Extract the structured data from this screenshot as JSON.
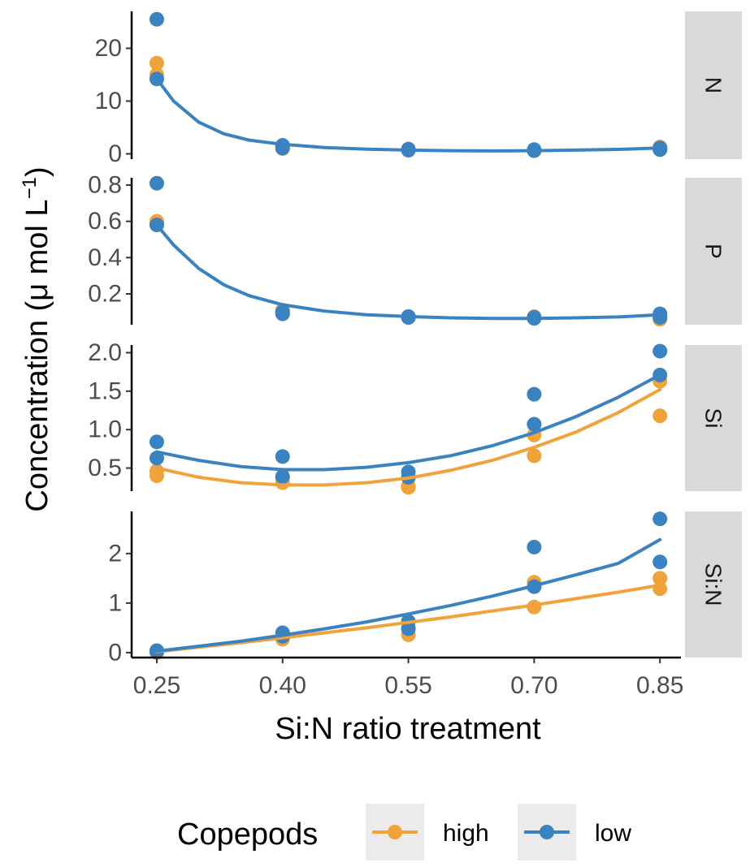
{
  "chart_data": {
    "type": "scatter",
    "ylabel": "Concentration (μ mol L",
    "ylabel_sup": "−1",
    "ylabel_close": ")",
    "xlabel": "Si:N ratio treatment",
    "x_ticks": [
      0.25,
      0.4,
      0.55,
      0.7,
      0.85
    ],
    "x_tick_labels": [
      "0.25",
      "0.40",
      "0.55",
      "0.70",
      "0.85"
    ],
    "xlim": [
      0.22,
      0.875
    ],
    "legend": {
      "title": "Copepods",
      "position": "bottom",
      "entries": [
        {
          "name": "high",
          "color": "#F0A33A"
        },
        {
          "name": "low",
          "color": "#3A82C0"
        }
      ]
    },
    "panels": [
      {
        "strip": "N",
        "ylim": [
          -1,
          27
        ],
        "y_ticks": [
          0,
          10,
          20
        ],
        "y_tick_labels": [
          "0",
          "10",
          "20"
        ],
        "series": [
          {
            "name": "high",
            "color": "#F0A33A",
            "points": [
              [
                0.25,
                17.2
              ],
              [
                0.25,
                15.0
              ],
              [
                0.4,
                1.6
              ],
              [
                0.4,
                1.0
              ],
              [
                0.55,
                0.8
              ],
              [
                0.55,
                0.7
              ],
              [
                0.7,
                0.7
              ],
              [
                0.7,
                0.6
              ],
              [
                0.85,
                1.3
              ],
              [
                0.85,
                0.9
              ]
            ],
            "fit": []
          },
          {
            "name": "low",
            "color": "#3A82C0",
            "points": [
              [
                0.25,
                25.5
              ],
              [
                0.25,
                14.2
              ],
              [
                0.4,
                1.6
              ],
              [
                0.4,
                1.1
              ],
              [
                0.55,
                0.9
              ],
              [
                0.55,
                0.7
              ],
              [
                0.7,
                0.8
              ],
              [
                0.7,
                0.6
              ],
              [
                0.85,
                1.1
              ],
              [
                0.85,
                0.8
              ]
            ],
            "fit": [
              [
                0.25,
                14.2
              ],
              [
                0.27,
                10.0
              ],
              [
                0.3,
                6.0
              ],
              [
                0.33,
                3.8
              ],
              [
                0.36,
                2.6
              ],
              [
                0.4,
                1.8
              ],
              [
                0.45,
                1.2
              ],
              [
                0.5,
                0.9
              ],
              [
                0.55,
                0.7
              ],
              [
                0.6,
                0.6
              ],
              [
                0.65,
                0.55
              ],
              [
                0.7,
                0.6
              ],
              [
                0.75,
                0.7
              ],
              [
                0.8,
                0.85
              ],
              [
                0.85,
                1.1
              ]
            ]
          }
        ]
      },
      {
        "strip": "P",
        "ylim": [
          0.03,
          0.84
        ],
        "y_ticks": [
          0.2,
          0.4,
          0.6,
          0.8
        ],
        "y_tick_labels": [
          "0.2",
          "0.4",
          "0.6",
          "0.8"
        ],
        "series": [
          {
            "name": "high",
            "color": "#F0A33A",
            "points": [
              [
                0.25,
                0.6
              ],
              [
                0.25,
                0.59
              ],
              [
                0.4,
                0.11
              ],
              [
                0.4,
                0.1
              ],
              [
                0.55,
                0.07
              ],
              [
                0.55,
                0.075
              ],
              [
                0.7,
                0.07
              ],
              [
                0.7,
                0.075
              ],
              [
                0.85,
                0.07
              ],
              [
                0.85,
                0.06
              ]
            ],
            "fit": []
          },
          {
            "name": "low",
            "color": "#3A82C0",
            "points": [
              [
                0.25,
                0.81
              ],
              [
                0.25,
                0.58
              ],
              [
                0.4,
                0.09
              ],
              [
                0.4,
                0.1
              ],
              [
                0.55,
                0.07
              ],
              [
                0.55,
                0.075
              ],
              [
                0.7,
                0.065
              ],
              [
                0.7,
                0.07
              ],
              [
                0.85,
                0.09
              ],
              [
                0.85,
                0.07
              ]
            ],
            "fit": [
              [
                0.25,
                0.58
              ],
              [
                0.27,
                0.47
              ],
              [
                0.3,
                0.34
              ],
              [
                0.33,
                0.25
              ],
              [
                0.36,
                0.19
              ],
              [
                0.4,
                0.14
              ],
              [
                0.45,
                0.105
              ],
              [
                0.5,
                0.085
              ],
              [
                0.55,
                0.075
              ],
              [
                0.6,
                0.068
              ],
              [
                0.65,
                0.065
              ],
              [
                0.7,
                0.065
              ],
              [
                0.75,
                0.068
              ],
              [
                0.8,
                0.073
              ],
              [
                0.85,
                0.085
              ]
            ]
          }
        ]
      },
      {
        "strip": "Si",
        "ylim": [
          0.2,
          2.1
        ],
        "y_ticks": [
          0.5,
          1.0,
          1.5,
          2.0
        ],
        "y_tick_labels": [
          "0.5",
          "1.0",
          "1.5",
          "2.0"
        ],
        "series": [
          {
            "name": "high",
            "color": "#F0A33A",
            "points": [
              [
                0.25,
                0.46
              ],
              [
                0.25,
                0.4
              ],
              [
                0.4,
                0.38
              ],
              [
                0.4,
                0.31
              ],
              [
                0.55,
                0.27
              ],
              [
                0.55,
                0.25
              ],
              [
                0.7,
                0.93
              ],
              [
                0.7,
                0.66
              ],
              [
                0.85,
                1.63
              ],
              [
                0.85,
                1.18
              ]
            ],
            "fit": [
              [
                0.25,
                0.5
              ],
              [
                0.3,
                0.38
              ],
              [
                0.35,
                0.31
              ],
              [
                0.4,
                0.28
              ],
              [
                0.45,
                0.28
              ],
              [
                0.5,
                0.31
              ],
              [
                0.55,
                0.37
              ],
              [
                0.6,
                0.47
              ],
              [
                0.65,
                0.6
              ],
              [
                0.7,
                0.77
              ],
              [
                0.75,
                0.97
              ],
              [
                0.8,
                1.22
              ],
              [
                0.85,
                1.52
              ]
            ]
          },
          {
            "name": "low",
            "color": "#3A82C0",
            "points": [
              [
                0.25,
                0.84
              ],
              [
                0.25,
                0.63
              ],
              [
                0.4,
                0.65
              ],
              [
                0.4,
                0.39
              ],
              [
                0.55,
                0.45
              ],
              [
                0.55,
                0.38
              ],
              [
                0.7,
                1.46
              ],
              [
                0.7,
                1.07
              ],
              [
                0.85,
                2.02
              ],
              [
                0.85,
                1.71
              ]
            ],
            "fit": [
              [
                0.25,
                0.71
              ],
              [
                0.3,
                0.6
              ],
              [
                0.35,
                0.52
              ],
              [
                0.4,
                0.48
              ],
              [
                0.45,
                0.48
              ],
              [
                0.5,
                0.51
              ],
              [
                0.55,
                0.57
              ],
              [
                0.6,
                0.66
              ],
              [
                0.65,
                0.79
              ],
              [
                0.7,
                0.96
              ],
              [
                0.75,
                1.17
              ],
              [
                0.8,
                1.42
              ],
              [
                0.85,
                1.71
              ]
            ]
          }
        ]
      },
      {
        "strip": "Si:N",
        "ylim": [
          -0.1,
          2.85
        ],
        "y_ticks": [
          0,
          1,
          2
        ],
        "y_tick_labels": [
          "0",
          "1",
          "2"
        ],
        "series": [
          {
            "name": "high",
            "color": "#F0A33A",
            "points": [
              [
                0.25,
                0.02
              ],
              [
                0.25,
                0.0
              ],
              [
                0.4,
                0.29
              ],
              [
                0.4,
                0.27
              ],
              [
                0.55,
                0.5
              ],
              [
                0.55,
                0.36
              ],
              [
                0.7,
                1.42
              ],
              [
                0.7,
                0.92
              ],
              [
                0.85,
                1.5
              ],
              [
                0.85,
                1.29
              ]
            ],
            "fit": [
              [
                0.25,
                0.02
              ],
              [
                0.3,
                0.11
              ],
              [
                0.35,
                0.2
              ],
              [
                0.4,
                0.3
              ],
              [
                0.45,
                0.4
              ],
              [
                0.5,
                0.5
              ],
              [
                0.55,
                0.61
              ],
              [
                0.6,
                0.72
              ],
              [
                0.65,
                0.84
              ],
              [
                0.7,
                0.96
              ],
              [
                0.75,
                1.09
              ],
              [
                0.8,
                1.22
              ],
              [
                0.85,
                1.36
              ]
            ]
          },
          {
            "name": "low",
            "color": "#3A82C0",
            "points": [
              [
                0.25,
                0.04
              ],
              [
                0.25,
                0.02
              ],
              [
                0.4,
                0.4
              ],
              [
                0.4,
                0.33
              ],
              [
                0.55,
                0.63
              ],
              [
                0.55,
                0.48
              ],
              [
                0.7,
                2.13
              ],
              [
                0.7,
                1.33
              ],
              [
                0.85,
                2.7
              ],
              [
                0.85,
                1.83
              ]
            ],
            "fit": [
              [
                0.25,
                0.03
              ],
              [
                0.3,
                0.13
              ],
              [
                0.35,
                0.23
              ],
              [
                0.4,
                0.35
              ],
              [
                0.45,
                0.48
              ],
              [
                0.5,
                0.62
              ],
              [
                0.55,
                0.78
              ],
              [
                0.6,
                0.95
              ],
              [
                0.65,
                1.14
              ],
              [
                0.7,
                1.35
              ],
              [
                0.75,
                1.57
              ],
              [
                0.8,
                1.8
              ],
              [
                0.85,
                2.28
              ]
            ]
          }
        ]
      }
    ]
  }
}
